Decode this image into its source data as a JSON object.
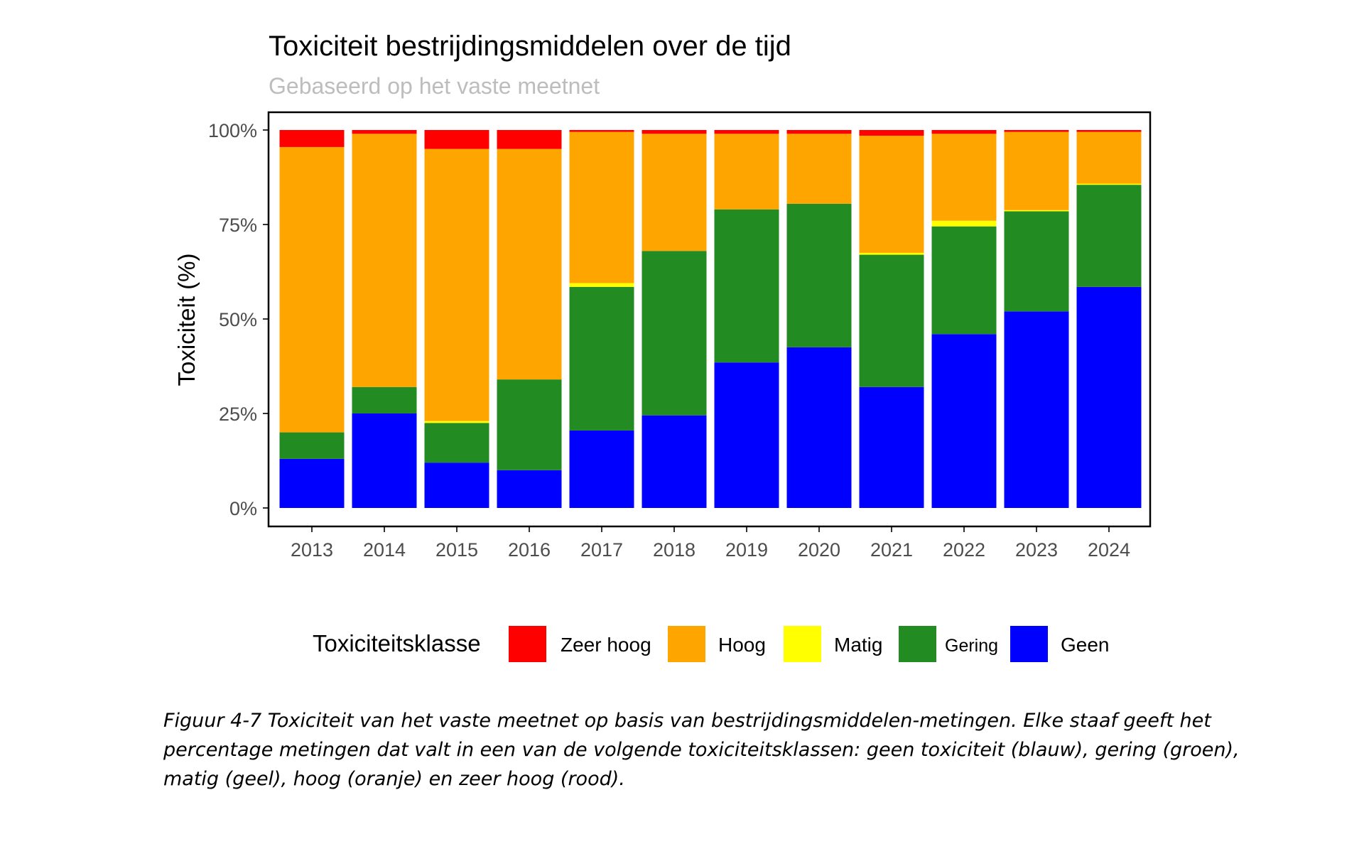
{
  "chart_data": {
    "type": "bar",
    "stacked": true,
    "normalized": true,
    "title": "Toxiciteit bestrijdingsmiddelen over de tijd",
    "subtitle": "Gebaseerd op het vaste meetnet",
    "xlabel": "",
    "ylabel": "Toxiciteit (%)",
    "ylim": [
      0,
      100
    ],
    "yticks": [
      "0%",
      "25%",
      "50%",
      "75%",
      "100%"
    ],
    "categories": [
      "2013",
      "2014",
      "2015",
      "2016",
      "2017",
      "2018",
      "2019",
      "2020",
      "2021",
      "2022",
      "2023",
      "2024"
    ],
    "series": [
      {
        "name": "Geen",
        "color": "#0000FF",
        "values": [
          13,
          25,
          12,
          10,
          20.5,
          24.5,
          38.5,
          42.5,
          32,
          46,
          52,
          58.5
        ]
      },
      {
        "name": "Gering",
        "color": "#228B22",
        "values": [
          7,
          7,
          10.5,
          24,
          38,
          43.5,
          40.5,
          38,
          35,
          28.5,
          26.5,
          27
        ]
      },
      {
        "name": "Matig",
        "color": "#FFFF00",
        "values": [
          0,
          0,
          0.5,
          0,
          1,
          0,
          0,
          0,
          0.5,
          1.5,
          0.3,
          0.3
        ]
      },
      {
        "name": "Hoog",
        "color": "#FFA500",
        "values": [
          75.5,
          67,
          72,
          61,
          40,
          31,
          20,
          18.5,
          31,
          23,
          20.7,
          13.7
        ]
      },
      {
        "name": "Zeer hoog",
        "color": "#FF0000",
        "values": [
          4.5,
          1,
          5,
          5,
          0.5,
          1,
          1,
          1,
          1.5,
          1,
          0.5,
          0.5
        ]
      }
    ],
    "grid": false,
    "legend": {
      "title": "Toxiciteitsklasse",
      "placement": "bottom",
      "order": [
        "Zeer hoog",
        "Hoog",
        "Matig",
        "Gering",
        "Geen"
      ]
    }
  },
  "caption": "Figuur 4-7 Toxiciteit van het vaste meetnet op basis van bestrijdingsmiddelen-metingen. Elke staaf geeft het percentage metingen dat valt in een van de volgende toxiciteitsklassen: geen toxiciteit (blauw), gering (groen), matig (geel), hoog (oranje) en zeer hoog (rood)."
}
